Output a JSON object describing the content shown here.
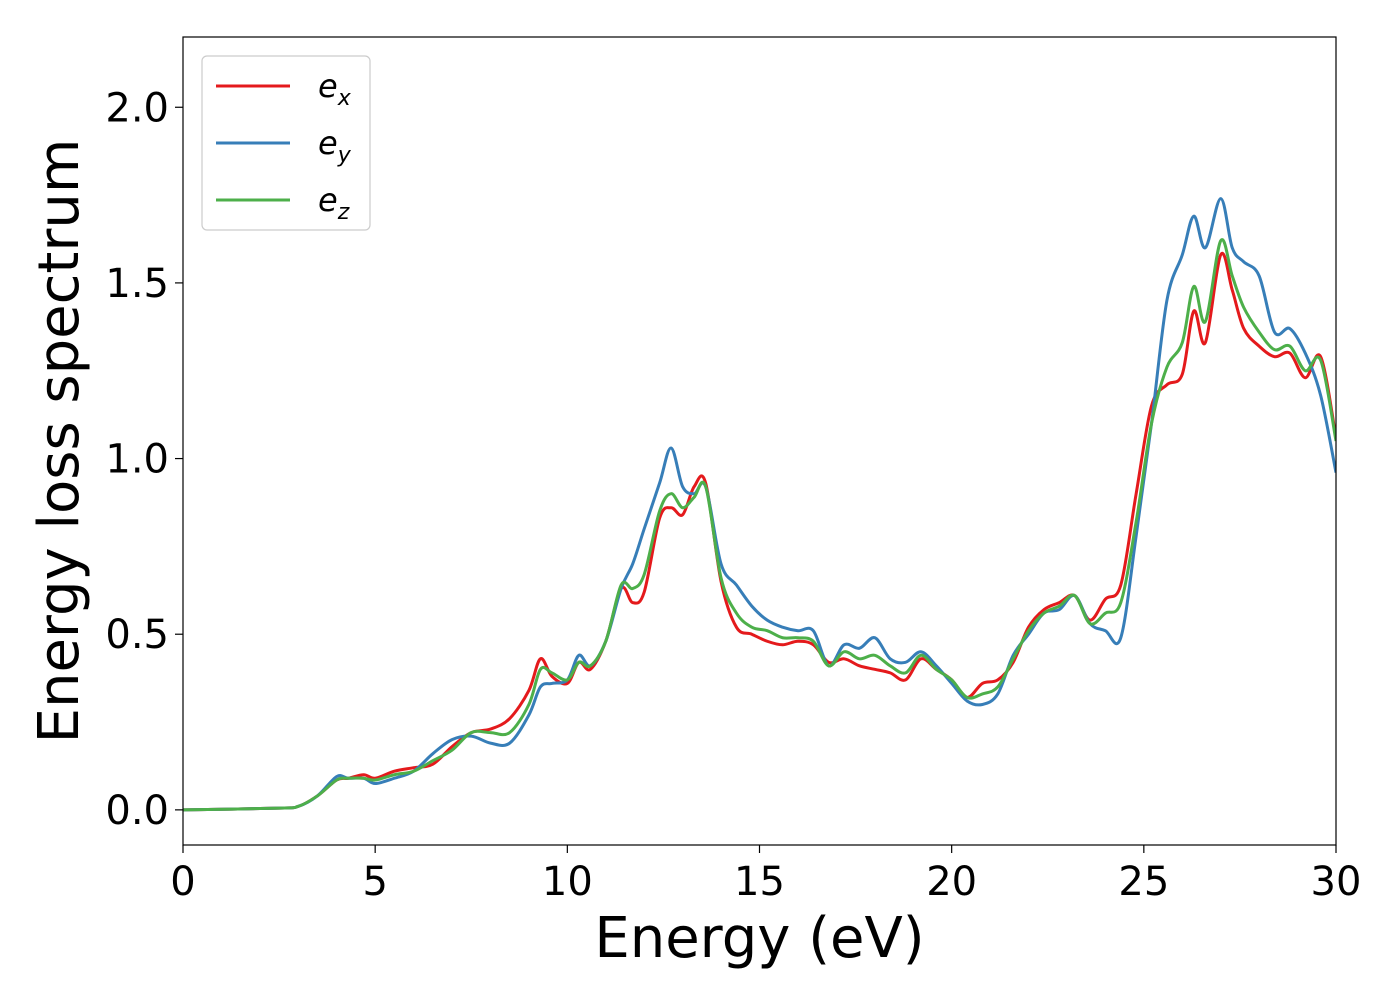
{
  "chart_data": {
    "type": "line",
    "title": "",
    "xlabel": "Energy (eV)",
    "ylabel": "Energy loss spectrum",
    "xlim": [
      0,
      30
    ],
    "ylim": [
      -0.1,
      2.2
    ],
    "xticks": [
      "0",
      "5",
      "10",
      "15",
      "20",
      "25",
      "30"
    ],
    "yticks": [
      "0.0",
      "0.5",
      "1.0",
      "1.5",
      "2.0"
    ],
    "grid": false,
    "legend_position": "top-left",
    "series": [
      {
        "name": "e_x",
        "label_base": "e",
        "label_sub": "x",
        "color": "#e41a1c",
        "x": [
          0,
          2.5,
          3.0,
          3.5,
          4.0,
          4.3,
          4.7,
          5.0,
          5.5,
          6.0,
          6.5,
          7.0,
          7.5,
          8.0,
          8.5,
          9.0,
          9.3,
          9.6,
          10.0,
          10.3,
          10.6,
          11.0,
          11.4,
          11.7,
          12.0,
          12.4,
          12.7,
          13.0,
          13.3,
          13.6,
          14.0,
          14.4,
          14.8,
          15.2,
          15.6,
          16.0,
          16.4,
          16.8,
          17.2,
          17.6,
          18.0,
          18.4,
          18.8,
          19.2,
          19.6,
          20.0,
          20.4,
          20.8,
          21.2,
          21.6,
          22.0,
          22.4,
          22.8,
          23.2,
          23.6,
          24.0,
          24.4,
          24.8,
          25.2,
          25.6,
          26.0,
          26.3,
          26.6,
          27.0,
          27.3,
          27.6,
          28.0,
          28.4,
          28.8,
          29.2,
          29.6,
          30.0
        ],
        "y": [
          0.0,
          0.005,
          0.01,
          0.04,
          0.085,
          0.09,
          0.1,
          0.09,
          0.11,
          0.12,
          0.13,
          0.18,
          0.22,
          0.23,
          0.26,
          0.34,
          0.43,
          0.38,
          0.36,
          0.42,
          0.4,
          0.48,
          0.63,
          0.59,
          0.62,
          0.83,
          0.86,
          0.84,
          0.92,
          0.93,
          0.65,
          0.52,
          0.5,
          0.48,
          0.47,
          0.48,
          0.47,
          0.42,
          0.43,
          0.41,
          0.4,
          0.39,
          0.37,
          0.43,
          0.4,
          0.37,
          0.32,
          0.36,
          0.37,
          0.42,
          0.52,
          0.57,
          0.59,
          0.61,
          0.54,
          0.6,
          0.64,
          0.9,
          1.15,
          1.21,
          1.24,
          1.42,
          1.33,
          1.58,
          1.48,
          1.37,
          1.32,
          1.29,
          1.3,
          1.23,
          1.29,
          1.06
        ]
      },
      {
        "name": "e_y",
        "label_base": "e",
        "label_sub": "y",
        "color": "#377eb8",
        "x": [
          0,
          2.5,
          3.0,
          3.5,
          4.0,
          4.3,
          4.7,
          5.0,
          5.5,
          6.0,
          6.5,
          7.0,
          7.5,
          8.0,
          8.5,
          9.0,
          9.3,
          9.6,
          10.0,
          10.3,
          10.6,
          11.0,
          11.4,
          11.7,
          12.0,
          12.4,
          12.7,
          13.0,
          13.3,
          13.6,
          14.0,
          14.4,
          14.8,
          15.2,
          15.6,
          16.0,
          16.4,
          16.8,
          17.2,
          17.6,
          18.0,
          18.4,
          18.8,
          19.2,
          19.6,
          20.0,
          20.4,
          20.8,
          21.2,
          21.6,
          22.0,
          22.4,
          22.8,
          23.2,
          23.6,
          24.0,
          24.4,
          24.8,
          25.2,
          25.6,
          26.0,
          26.3,
          26.6,
          27.0,
          27.3,
          27.6,
          28.0,
          28.4,
          28.8,
          29.2,
          29.6,
          30.0
        ],
        "y": [
          0.0,
          0.005,
          0.01,
          0.04,
          0.095,
          0.09,
          0.09,
          0.075,
          0.09,
          0.11,
          0.16,
          0.2,
          0.21,
          0.19,
          0.19,
          0.27,
          0.35,
          0.36,
          0.37,
          0.44,
          0.41,
          0.48,
          0.63,
          0.7,
          0.8,
          0.93,
          1.03,
          0.92,
          0.9,
          0.92,
          0.7,
          0.64,
          0.58,
          0.54,
          0.52,
          0.51,
          0.51,
          0.41,
          0.47,
          0.46,
          0.49,
          0.43,
          0.42,
          0.45,
          0.41,
          0.36,
          0.31,
          0.3,
          0.33,
          0.44,
          0.5,
          0.56,
          0.57,
          0.61,
          0.53,
          0.51,
          0.49,
          0.78,
          1.1,
          1.45,
          1.58,
          1.69,
          1.6,
          1.74,
          1.6,
          1.56,
          1.52,
          1.36,
          1.37,
          1.3,
          1.18,
          0.96
        ]
      },
      {
        "name": "e_z",
        "label_base": "e",
        "label_sub": "z",
        "color": "#4daf4a",
        "x": [
          0,
          2.5,
          3.0,
          3.5,
          4.0,
          4.3,
          4.7,
          5.0,
          5.5,
          6.0,
          6.5,
          7.0,
          7.5,
          8.0,
          8.5,
          9.0,
          9.3,
          9.6,
          10.0,
          10.3,
          10.6,
          11.0,
          11.4,
          11.7,
          12.0,
          12.4,
          12.7,
          13.0,
          13.3,
          13.6,
          14.0,
          14.4,
          14.8,
          15.2,
          15.6,
          16.0,
          16.4,
          16.8,
          17.2,
          17.6,
          18.0,
          18.4,
          18.8,
          19.2,
          19.6,
          20.0,
          20.4,
          20.8,
          21.2,
          21.6,
          22.0,
          22.4,
          22.8,
          23.2,
          23.6,
          24.0,
          24.4,
          24.8,
          25.2,
          25.6,
          26.0,
          26.3,
          26.6,
          27.0,
          27.3,
          27.6,
          28.0,
          28.4,
          28.8,
          29.2,
          29.6,
          30.0
        ],
        "y": [
          0.0,
          0.005,
          0.01,
          0.04,
          0.085,
          0.09,
          0.09,
          0.085,
          0.1,
          0.11,
          0.14,
          0.17,
          0.22,
          0.22,
          0.22,
          0.3,
          0.4,
          0.39,
          0.37,
          0.42,
          0.41,
          0.48,
          0.64,
          0.63,
          0.67,
          0.85,
          0.9,
          0.86,
          0.89,
          0.92,
          0.66,
          0.56,
          0.52,
          0.51,
          0.49,
          0.49,
          0.48,
          0.41,
          0.45,
          0.43,
          0.44,
          0.41,
          0.39,
          0.44,
          0.4,
          0.37,
          0.32,
          0.33,
          0.35,
          0.43,
          0.51,
          0.56,
          0.58,
          0.61,
          0.53,
          0.56,
          0.59,
          0.82,
          1.1,
          1.26,
          1.33,
          1.49,
          1.39,
          1.62,
          1.52,
          1.43,
          1.36,
          1.31,
          1.32,
          1.25,
          1.28,
          1.05
        ]
      }
    ]
  }
}
